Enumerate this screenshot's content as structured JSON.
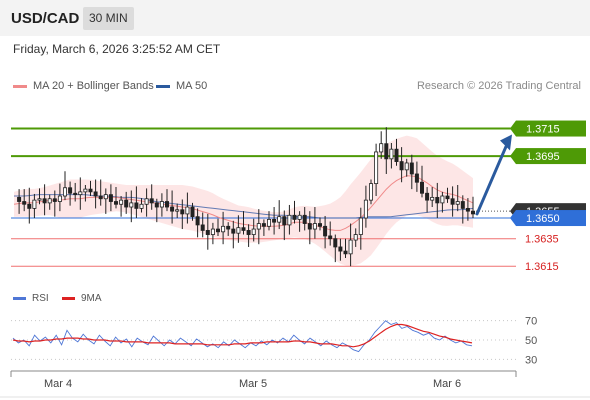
{
  "header": {
    "symbol": "USD/CAD",
    "interval": "30 MIN"
  },
  "datetime": "Friday, March 6, 2026 3:25:52 AM CET",
  "legend": {
    "items": [
      {
        "label": "MA 20 + Bollinger Bands",
        "color": "#f08a8a"
      },
      {
        "label": "MA 50",
        "color": "#2a5a9e"
      }
    ],
    "credit": "Research © 2026 Trading Central"
  },
  "rsi_legend": [
    {
      "label": "RSI",
      "color": "#4f77d6"
    },
    {
      "label": "9MA",
      "color": "#dd2222"
    }
  ],
  "chart_data": [
    {
      "type": "candlestick",
      "y_range": [
        1.3605,
        1.3735
      ],
      "x_labels": [
        "Mar 4",
        "Mar 5",
        "Mar 6"
      ],
      "levels": [
        {
          "value": 1.3715,
          "label": "1.3715",
          "color": "#4e9a06",
          "style": "resistance"
        },
        {
          "value": 1.3695,
          "label": "1.3695",
          "color": "#4e9a06",
          "style": "resistance"
        },
        {
          "value": 1.3655,
          "label": "1.3655",
          "color": "#555555",
          "style": "current"
        },
        {
          "value": 1.365,
          "label": "1.3650",
          "color": "#2f6fd8",
          "style": "pivot"
        },
        {
          "value": 1.3635,
          "label": "1.3635",
          "color": "#d62020",
          "style": "support"
        },
        {
          "value": 1.3615,
          "label": "1.3615",
          "color": "#d62020",
          "style": "support"
        }
      ],
      "close_path": [
        1.3665,
        1.3662,
        1.366,
        1.3657,
        1.3663,
        1.3664,
        1.3661,
        1.3664,
        1.3662,
        1.3666,
        1.3672,
        1.3668,
        1.3667,
        1.3669,
        1.3671,
        1.3669,
        1.3666,
        1.3664,
        1.3667,
        1.3662,
        1.366,
        1.3663,
        1.3658,
        1.3661,
        1.3657,
        1.366,
        1.3664,
        1.3661,
        1.3658,
        1.3662,
        1.3658,
        1.3655,
        1.3656,
        1.3653,
        1.3658,
        1.3651,
        1.3645,
        1.3641,
        1.3638,
        1.3642,
        1.364,
        1.3644,
        1.3642,
        1.3639,
        1.3643,
        1.3641,
        1.3638,
        1.3642,
        1.3646,
        1.3644,
        1.3649,
        1.3647,
        1.3651,
        1.3645,
        1.3652,
        1.3649,
        1.3652,
        1.3646,
        1.3642,
        1.3646,
        1.3644,
        1.3637,
        1.3635,
        1.3629,
        1.3626,
        1.3624,
        1.3634,
        1.3638,
        1.365,
        1.3663,
        1.3675,
        1.3698,
        1.3704,
        1.3693,
        1.37,
        1.3691,
        1.3685,
        1.369,
        1.3682,
        1.3676,
        1.3668,
        1.3663,
        1.3665,
        1.3661,
        1.3666,
        1.3664,
        1.366,
        1.3662,
        1.3657,
        1.3655,
        1.3653
      ],
      "ma20_path": [
        1.366,
        1.3661,
        1.3661,
        1.3662,
        1.3663,
        1.3663,
        1.3664,
        1.3664,
        1.3665,
        1.3665,
        1.3665,
        1.3665,
        1.3664,
        1.3663,
        1.3662,
        1.3661,
        1.366,
        1.3659,
        1.3658,
        1.3657,
        1.3655,
        1.3653,
        1.365,
        1.3648,
        1.3646,
        1.3645,
        1.3644,
        1.3644,
        1.3644,
        1.3645,
        1.3647,
        1.3647,
        1.3645,
        1.3643,
        1.3641,
        1.3641,
        1.3645,
        1.365,
        1.3657,
        1.3665,
        1.3673,
        1.3678,
        1.3681,
        1.368,
        1.3676,
        1.3671,
        1.3668,
        1.3667,
        1.3664,
        1.3661
      ],
      "ma50_path": [
        1.3666,
        1.3666,
        1.3667,
        1.3667,
        1.3667,
        1.3667,
        1.3667,
        1.3666,
        1.3666,
        1.3665,
        1.3665,
        1.3664,
        1.3662,
        1.3661,
        1.366,
        1.3659,
        1.3658,
        1.3657,
        1.3656,
        1.3655,
        1.3654,
        1.3653,
        1.3652,
        1.3652,
        1.3651,
        1.3651,
        1.365,
        1.365,
        1.365,
        1.365,
        1.3651,
        1.3651,
        1.3651,
        1.3652,
        1.3653,
        1.3654,
        1.3655,
        1.3656,
        1.3656,
        1.3657
      ],
      "bb_width_path": [
        0.0009,
        0.001,
        0.001,
        0.001,
        0.0011,
        0.0013,
        0.0014,
        0.0014,
        0.0013,
        0.0012,
        0.0011,
        0.001,
        0.001,
        0.0011,
        0.0012,
        0.0013,
        0.0014,
        0.0015,
        0.0016,
        0.0016,
        0.0016,
        0.0016,
        0.0015,
        0.0014,
        0.0013,
        0.0013,
        0.0012,
        0.0011,
        0.001,
        0.001,
        0.0011,
        0.0012,
        0.0013,
        0.0016,
        0.002,
        0.0025,
        0.003,
        0.0033,
        0.0035,
        0.0034,
        0.0032,
        0.003,
        0.0029,
        0.0028,
        0.0026,
        0.0025,
        0.0024,
        0.0022,
        0.002,
        0.0018
      ],
      "projection": {
        "from_value": 1.3653,
        "to_value": 1.3715
      }
    },
    {
      "type": "line",
      "title": "RSI",
      "y_range": [
        20,
        80
      ],
      "y_ticks": [
        30,
        50,
        70
      ],
      "series": [
        {
          "name": "RSI",
          "values": [
            52,
            47,
            50,
            44,
            55,
            49,
            53,
            47,
            55,
            45,
            60,
            52,
            48,
            56,
            50,
            46,
            55,
            49,
            44,
            53,
            47,
            51,
            43,
            52,
            48,
            45,
            54,
            49,
            44,
            50,
            46,
            52,
            48,
            44,
            51,
            47,
            43,
            46,
            42,
            48,
            44,
            50,
            46,
            42,
            47,
            44,
            49,
            45,
            50,
            47,
            52,
            48,
            55,
            50,
            46,
            52,
            48,
            44,
            49,
            45,
            42,
            47,
            44,
            40,
            38,
            45,
            50,
            58,
            64,
            70,
            66,
            68,
            62,
            64,
            60,
            58,
            55,
            57,
            52,
            50,
            54,
            50,
            47,
            49,
            45,
            44
          ]
        },
        {
          "name": "9MA",
          "values": [
            50,
            49,
            49,
            48,
            49,
            49,
            50,
            50,
            51,
            51,
            52,
            52,
            52,
            51,
            51,
            50,
            50,
            50,
            49,
            49,
            49,
            48,
            48,
            48,
            48,
            47,
            47,
            47,
            47,
            47,
            46,
            46,
            46,
            46,
            46,
            46,
            45,
            45,
            45,
            45,
            45,
            46,
            46,
            46,
            47,
            47,
            47,
            48,
            48,
            48,
            48,
            48,
            49,
            49,
            48,
            48,
            47,
            46,
            46,
            46,
            45,
            44,
            44,
            43,
            44,
            46,
            49,
            53,
            57,
            61,
            64,
            66,
            66,
            65,
            63,
            61,
            59,
            58,
            56,
            54,
            53,
            51,
            50,
            49,
            48,
            47
          ]
        }
      ]
    }
  ]
}
